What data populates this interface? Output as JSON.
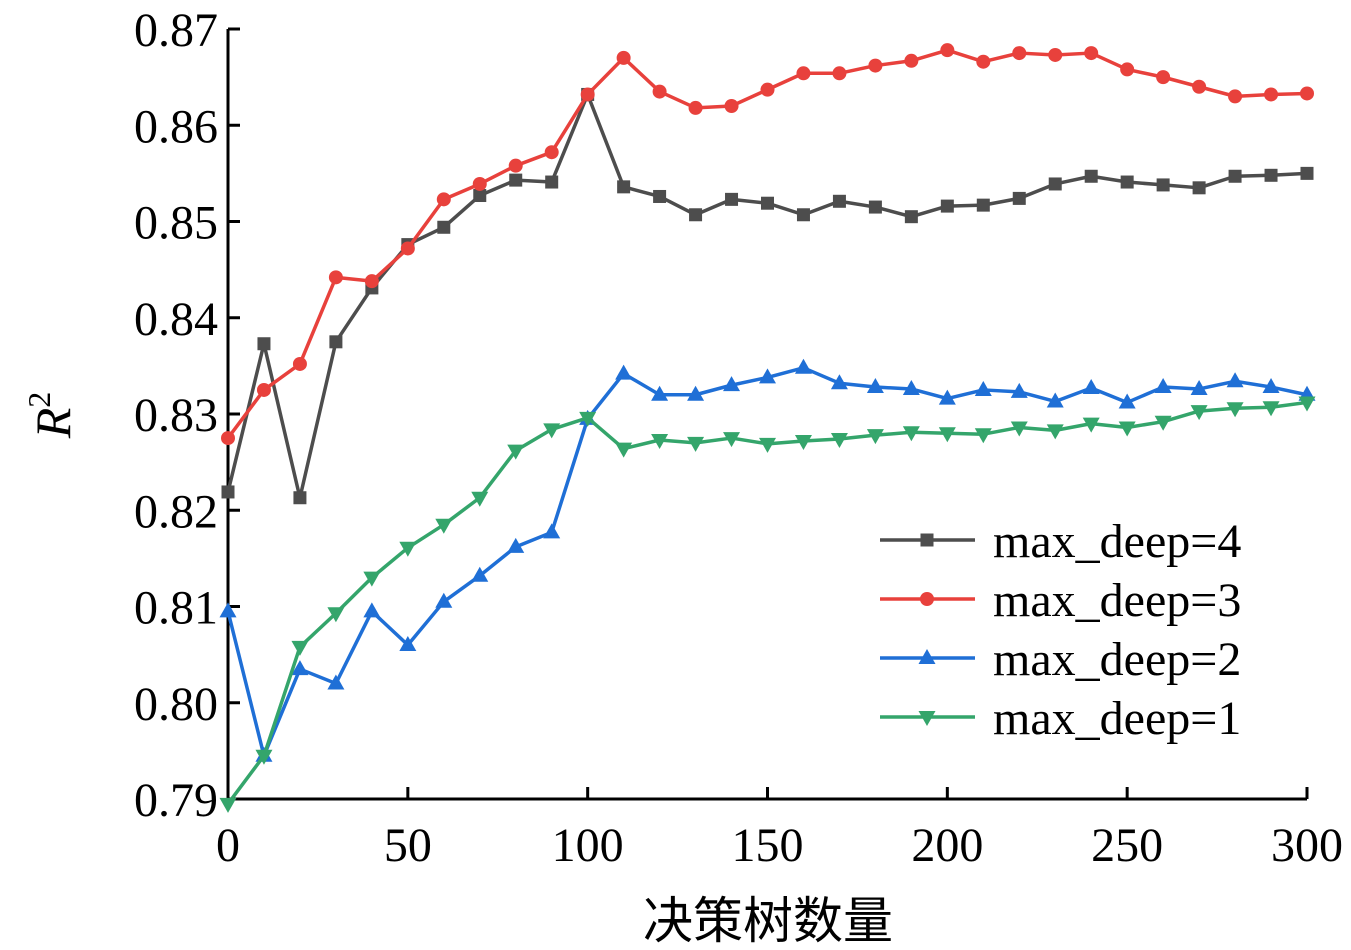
{
  "chart_data": {
    "type": "line",
    "xlabel": "决策树数量",
    "ylabel_base": "R",
    "ylabel_sup": "2",
    "xlim": [
      0,
      300
    ],
    "ylim": [
      0.79,
      0.87
    ],
    "x_ticks": [
      "0",
      "50",
      "100",
      "150",
      "200",
      "250",
      "300"
    ],
    "y_ticks": [
      "0.79",
      "0.80",
      "0.81",
      "0.82",
      "0.83",
      "0.84",
      "0.85",
      "0.86",
      "0.87"
    ],
    "grid": false,
    "legend_position": "bottom-right",
    "x": [
      0,
      10,
      20,
      30,
      40,
      50,
      60,
      70,
      80,
      90,
      100,
      110,
      120,
      130,
      140,
      150,
      160,
      170,
      180,
      190,
      200,
      210,
      220,
      230,
      240,
      250,
      260,
      270,
      280,
      290,
      300
    ],
    "series": [
      {
        "name": "max_deep=4",
        "color": "#4d4d4d",
        "marker": "square",
        "values": [
          0.8219,
          0.8373,
          0.8213,
          0.8375,
          0.8431,
          0.8476,
          0.8494,
          0.8527,
          0.8543,
          0.8541,
          0.8632,
          0.8536,
          0.8526,
          0.8507,
          0.8523,
          0.8519,
          0.8507,
          0.8521,
          0.8515,
          0.8505,
          0.8516,
          0.8517,
          0.8524,
          0.8539,
          0.8547,
          0.8541,
          0.8538,
          0.8535,
          0.8547,
          0.8548,
          0.855
        ]
      },
      {
        "name": "max_deep=3",
        "color": "#e8413c",
        "marker": "circle",
        "values": [
          0.8275,
          0.8325,
          0.8352,
          0.8442,
          0.8438,
          0.8472,
          0.8523,
          0.8539,
          0.8558,
          0.8572,
          0.8632,
          0.867,
          0.8635,
          0.8618,
          0.862,
          0.8637,
          0.8654,
          0.8654,
          0.8662,
          0.8667,
          0.8678,
          0.8666,
          0.8675,
          0.8673,
          0.8675,
          0.8658,
          0.865,
          0.864,
          0.863,
          0.8632,
          0.8633
        ]
      },
      {
        "name": "max_deep=2",
        "color": "#1f6fd6",
        "marker": "triangle-up",
        "values": [
          0.8095,
          0.7945,
          0.8035,
          0.802,
          0.8095,
          0.806,
          0.8105,
          0.8132,
          0.8162,
          0.8177,
          0.8295,
          0.8342,
          0.832,
          0.832,
          0.833,
          0.8338,
          0.8348,
          0.8332,
          0.8328,
          0.8326,
          0.8316,
          0.8325,
          0.8323,
          0.8313,
          0.8327,
          0.8312,
          0.8328,
          0.8326,
          0.8334,
          0.8328,
          0.832
        ]
      },
      {
        "name": "max_deep=1",
        "color": "#34a56b",
        "marker": "triangle-down",
        "values": [
          0.7895,
          0.7945,
          0.8058,
          0.8093,
          0.813,
          0.8161,
          0.8185,
          0.8213,
          0.8262,
          0.8284,
          0.8296,
          0.8264,
          0.8273,
          0.827,
          0.8275,
          0.8269,
          0.8272,
          0.8274,
          0.8278,
          0.8281,
          0.828,
          0.8279,
          0.8286,
          0.8283,
          0.829,
          0.8286,
          0.8292,
          0.8303,
          0.8306,
          0.8307,
          0.8312
        ]
      }
    ]
  }
}
